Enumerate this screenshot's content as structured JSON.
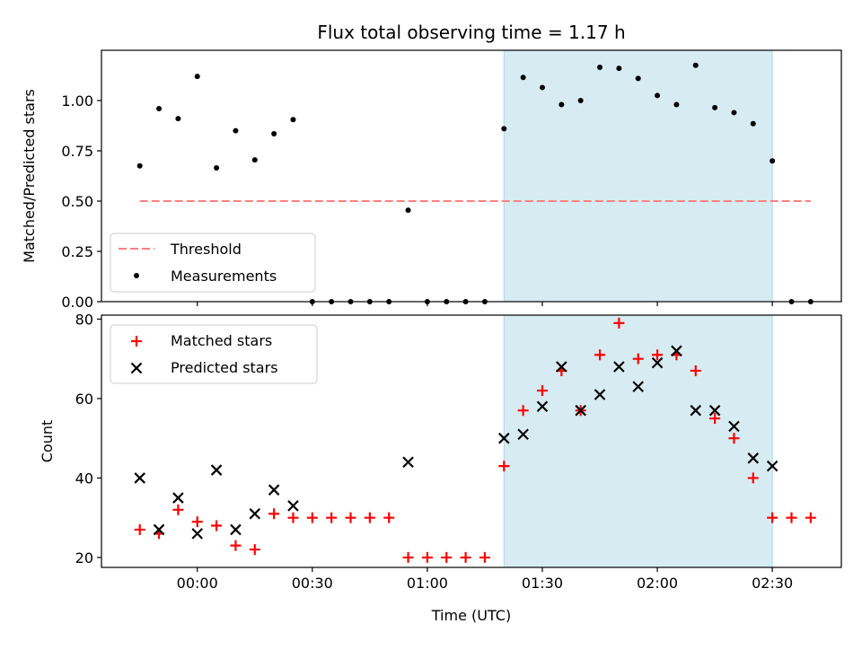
{
  "figure": {
    "title": "Flux total observing time = 1.17 h",
    "xlabel": "Time (UTC)"
  },
  "colors": {
    "shade": "#add8e6",
    "threshold": "#ff7f7f",
    "measurements": "#000000",
    "matched": "#ff0000",
    "predicted": "#000000"
  },
  "chart_data": [
    {
      "type": "scatter",
      "name": "ratio-panel",
      "ylabel": "Matched/Predicted stars",
      "x_unit": "minutes after 00:00 UTC",
      "xlim": [
        -25,
        168
      ],
      "ylim": [
        0,
        1.25
      ],
      "yticks": [
        0.0,
        0.25,
        0.5,
        0.75,
        1.0
      ],
      "ytick_labels": [
        "0.00",
        "0.25",
        "0.50",
        "0.75",
        "1.00"
      ],
      "legend_placement": "lower-left",
      "shaded_interval": [
        80,
        150
      ],
      "threshold": {
        "name": "Threshold",
        "y": 0.5,
        "x": [
          -15,
          160
        ],
        "style": "dashed"
      },
      "series": [
        {
          "name": "Measurements",
          "x": [
            -15,
            -10,
            -5,
            0,
            5,
            10,
            15,
            20,
            25,
            30,
            35,
            40,
            45,
            50,
            55,
            60,
            65,
            70,
            75,
            80,
            85,
            90,
            95,
            100,
            105,
            110,
            115,
            120,
            125,
            130,
            135,
            140,
            145,
            150,
            155,
            160
          ],
          "y": [
            0.675,
            0.96,
            0.91,
            1.12,
            0.665,
            0.85,
            0.705,
            0.835,
            0.905,
            0.0,
            0.0,
            0.0,
            0.0,
            0.0,
            0.455,
            0.0,
            0.0,
            0.0,
            0.0,
            0.86,
            1.115,
            1.065,
            0.98,
            1.0,
            1.165,
            1.16,
            1.11,
            1.025,
            0.98,
            1.175,
            0.965,
            0.94,
            0.885,
            0.7,
            0.0,
            0.0
          ]
        }
      ]
    },
    {
      "type": "scatter",
      "name": "count-panel",
      "ylabel": "Count",
      "x_unit": "minutes after 00:00 UTC",
      "xlim": [
        -25,
        168
      ],
      "ylim": [
        17.5,
        81
      ],
      "yticks": [
        20,
        40,
        60,
        80
      ],
      "ytick_labels": [
        "20",
        "40",
        "60",
        "80"
      ],
      "xticks": [
        0,
        30,
        60,
        90,
        120,
        150
      ],
      "xtick_labels": [
        "00:00",
        "00:30",
        "01:00",
        "01:30",
        "02:00",
        "02:30"
      ],
      "legend_placement": "top-left",
      "shaded_interval": [
        80,
        150
      ],
      "series": [
        {
          "name": "Matched stars",
          "marker": "plus",
          "x": [
            -15,
            -10,
            -5,
            0,
            5,
            10,
            15,
            20,
            25,
            30,
            35,
            40,
            45,
            50,
            55,
            60,
            65,
            70,
            75,
            80,
            85,
            90,
            95,
            100,
            105,
            110,
            115,
            120,
            125,
            130,
            135,
            140,
            145,
            150,
            155,
            160
          ],
          "y": [
            27,
            26,
            32,
            29,
            28,
            23,
            22,
            31,
            30,
            30,
            30,
            30,
            30,
            30,
            20,
            20,
            20,
            20,
            20,
            43,
            57,
            62,
            67,
            57,
            71,
            79,
            70,
            71,
            71,
            67,
            55,
            50,
            40,
            30,
            30,
            30
          ]
        },
        {
          "name": "Predicted stars",
          "marker": "x",
          "x": [
            -15,
            -10,
            -5,
            0,
            5,
            10,
            15,
            20,
            25,
            55,
            80,
            85,
            90,
            95,
            100,
            105,
            110,
            115,
            120,
            125,
            130,
            135,
            140,
            145,
            150
          ],
          "y": [
            40,
            27,
            35,
            26,
            42,
            27,
            31,
            37,
            33,
            44,
            50,
            51,
            58,
            68,
            57,
            61,
            68,
            63,
            69,
            72,
            57,
            57,
            53,
            45,
            43
          ]
        }
      ]
    }
  ]
}
